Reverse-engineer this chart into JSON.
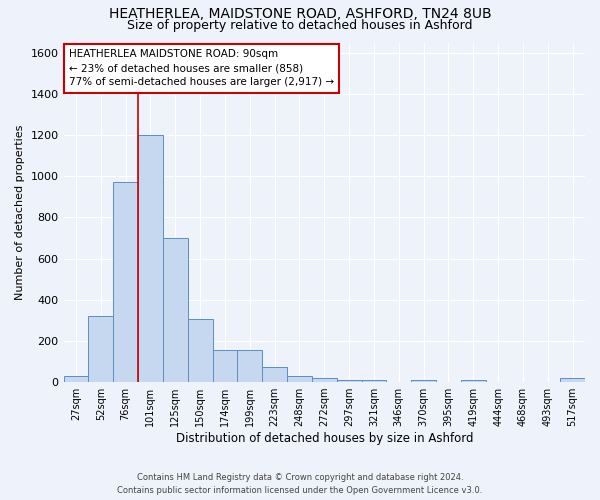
{
  "title1": "HEATHERLEA, MAIDSTONE ROAD, ASHFORD, TN24 8UB",
  "title2": "Size of property relative to detached houses in Ashford",
  "xlabel": "Distribution of detached houses by size in Ashford",
  "ylabel": "Number of detached properties",
  "categories": [
    "27sqm",
    "52sqm",
    "76sqm",
    "101sqm",
    "125sqm",
    "150sqm",
    "174sqm",
    "199sqm",
    "223sqm",
    "248sqm",
    "272sqm",
    "297sqm",
    "321sqm",
    "346sqm",
    "370sqm",
    "395sqm",
    "419sqm",
    "444sqm",
    "468sqm",
    "493sqm",
    "517sqm"
  ],
  "values": [
    30,
    320,
    970,
    1200,
    700,
    305,
    155,
    155,
    75,
    30,
    20,
    10,
    10,
    0,
    10,
    0,
    10,
    0,
    0,
    0,
    20
  ],
  "bar_color": "#c5d8f0",
  "bar_edge_color": "#5b8ec4",
  "ylim": [
    0,
    1650
  ],
  "yticks": [
    0,
    200,
    400,
    600,
    800,
    1000,
    1200,
    1400,
    1600
  ],
  "annotation_title": "HEATHERLEA MAIDSTONE ROAD: 90sqm",
  "annotation_line1": "← 23% of detached houses are smaller (858)",
  "annotation_line2": "77% of semi-detached houses are larger (2,917) →",
  "vline_color": "#cc0000",
  "annotation_box_color": "#ffffff",
  "annotation_box_edge": "#cc0000",
  "footer1": "Contains HM Land Registry data © Crown copyright and database right 2024.",
  "footer2": "Contains public sector information licensed under the Open Government Licence v3.0.",
  "background_color": "#eef2fa",
  "grid_color": "#ffffff",
  "title_fontsize": 10,
  "subtitle_fontsize": 9,
  "vline_x": 2.5
}
